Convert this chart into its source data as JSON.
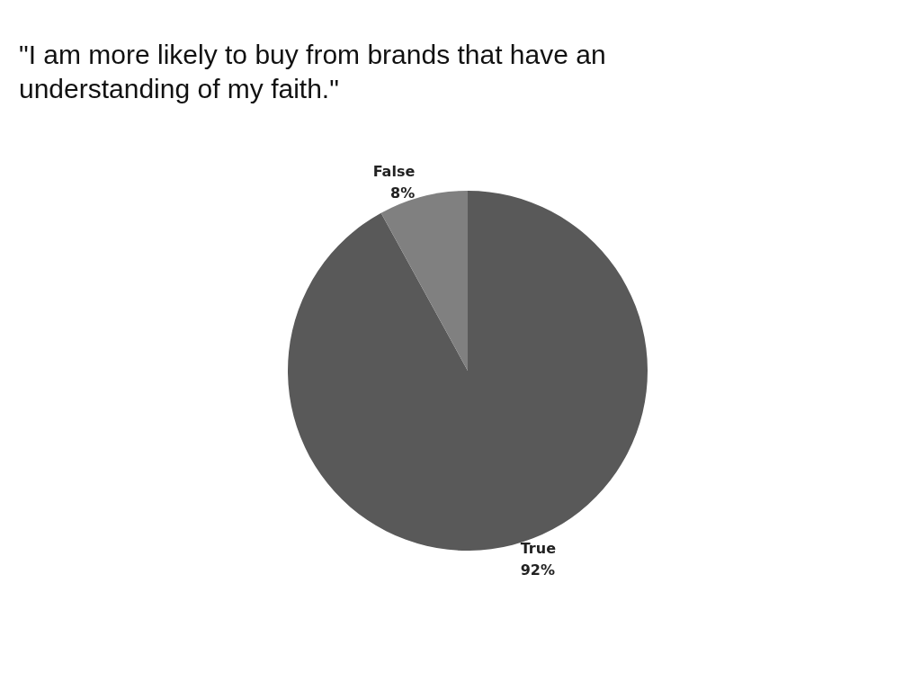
{
  "chart_data": {
    "type": "pie",
    "title": "\"I am more likely to buy from brands that have an understanding of my faith.\"",
    "categories": [
      "True",
      "False"
    ],
    "values": [
      92,
      8
    ],
    "value_labels": [
      "92%",
      "8%"
    ],
    "colors": [
      "#595959",
      "#808080"
    ]
  }
}
